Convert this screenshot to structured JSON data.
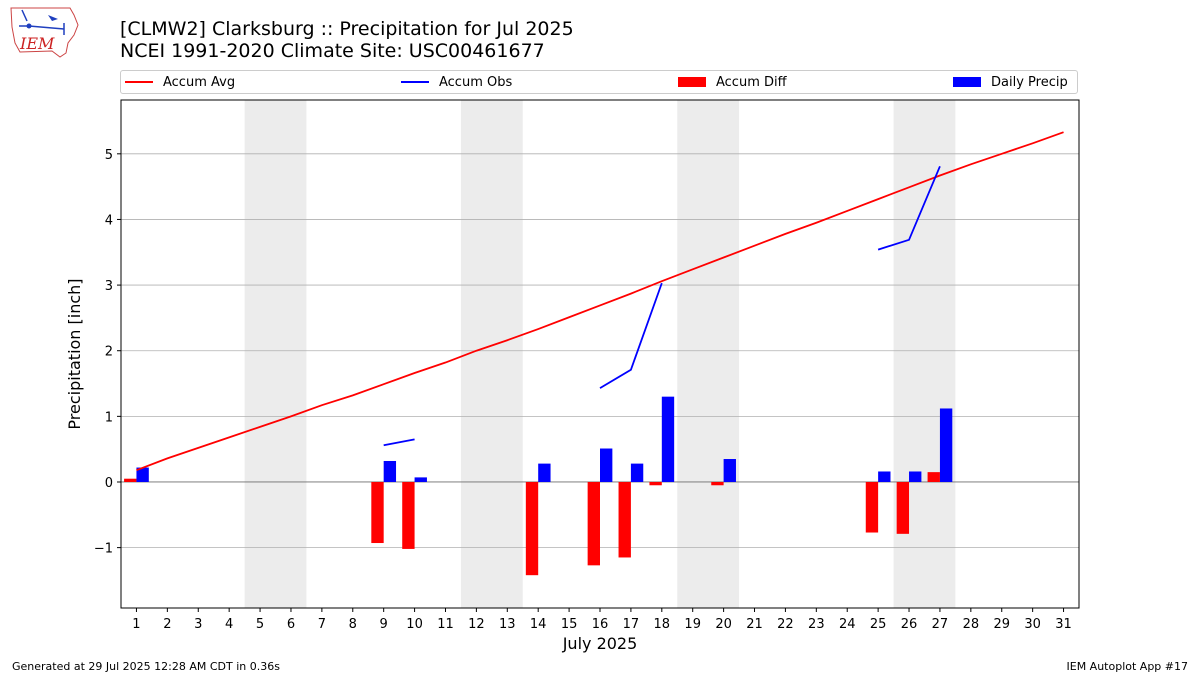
{
  "title_line1": "[CLMW2] Clarksburg :: Precipitation for Jul 2025",
  "title_line2": "NCEI 1991-2020 Climate Site: USC00461677",
  "logo_text": "IEM",
  "footer_left": "Generated at 29 Jul 2025 12:28 AM CDT in 0.36s",
  "footer_right": "IEM Autoplot App #17",
  "colors": {
    "accum_avg": "#ff0000",
    "accum_obs": "#0000ff",
    "accum_diff": "#ff0000",
    "daily_precip": "#0000ff",
    "weekend_shade": "#ececec",
    "grid": "#b0b0b0"
  },
  "legend": [
    {
      "label": "Accum Avg",
      "kind": "line",
      "color": "#ff0000"
    },
    {
      "label": "Accum Obs",
      "kind": "line",
      "color": "#0000ff"
    },
    {
      "label": "Accum Diff",
      "kind": "box",
      "color": "#ff0000"
    },
    {
      "label": "Daily Precip",
      "kind": "box",
      "color": "#0000ff"
    }
  ],
  "chart_data": {
    "type": "bar",
    "xlabel": "July 2025",
    "ylabel": "Precipitation [inch]",
    "x": [
      1,
      2,
      3,
      4,
      5,
      6,
      7,
      8,
      9,
      10,
      11,
      12,
      13,
      14,
      15,
      16,
      17,
      18,
      19,
      20,
      21,
      22,
      23,
      24,
      25,
      26,
      27,
      28,
      29,
      30,
      31
    ],
    "xlim": [
      0.5,
      31.5
    ],
    "ylim": [
      -1.92,
      5.82
    ],
    "yticks": [
      -1,
      0,
      1,
      2,
      3,
      4,
      5
    ],
    "ytick_labels": [
      "−1",
      "0",
      "1",
      "2",
      "3",
      "4",
      "5"
    ],
    "grid": "horizontal",
    "legend_position": "top",
    "weekend_bands": [
      [
        4.5,
        6.5
      ],
      [
        11.5,
        13.5
      ],
      [
        18.5,
        20.5
      ],
      [
        25.5,
        27.5
      ]
    ],
    "series": [
      {
        "name": "Accum Avg",
        "type": "line",
        "values": [
          0.18,
          0.36,
          0.52,
          0.68,
          0.84,
          1.0,
          1.17,
          1.32,
          1.49,
          1.66,
          1.82,
          2.0,
          2.16,
          2.33,
          2.51,
          2.69,
          2.87,
          3.06,
          3.24,
          3.42,
          3.6,
          3.78,
          3.95,
          4.13,
          4.31,
          4.49,
          4.67,
          4.84,
          5.0,
          5.16,
          5.33
        ]
      },
      {
        "name": "Accum Obs",
        "type": "line",
        "values": [
          null,
          null,
          null,
          null,
          null,
          null,
          null,
          null,
          0.56,
          0.65,
          null,
          null,
          null,
          null,
          null,
          1.43,
          1.71,
          3.03,
          null,
          null,
          null,
          null,
          null,
          null,
          3.54,
          3.69,
          4.81,
          null,
          null,
          null,
          null
        ]
      },
      {
        "name": "Accum Diff",
        "type": "bar",
        "values": [
          0.05,
          0,
          0,
          0,
          0,
          0,
          0,
          0,
          -0.93,
          -1.02,
          0,
          0,
          0,
          -1.42,
          0,
          -1.27,
          -1.15,
          -0.05,
          0,
          -0.05,
          0,
          0,
          0,
          0,
          -0.77,
          -0.79,
          0.15,
          0,
          0,
          0,
          0
        ]
      },
      {
        "name": "Daily Precip",
        "type": "bar",
        "values": [
          0.22,
          0,
          0,
          0,
          0,
          0,
          0,
          0,
          0.32,
          0.07,
          0,
          0,
          0,
          0.28,
          0,
          0.51,
          0.28,
          1.3,
          0,
          0.35,
          0,
          0,
          0,
          0,
          0.16,
          0.16,
          1.12,
          0,
          0,
          0,
          0
        ]
      }
    ]
  }
}
